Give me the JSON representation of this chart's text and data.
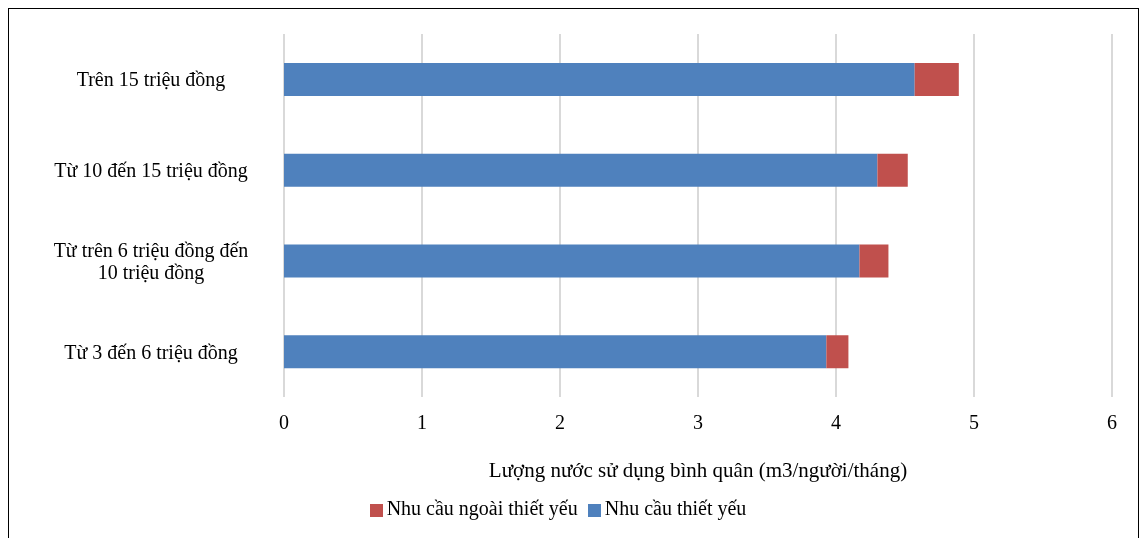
{
  "chart_data": {
    "type": "bar",
    "orientation": "horizontal",
    "stacked": true,
    "xlabel": "Lượng nước sử dụng bình quân (m3/người/tháng)",
    "categories": [
      "Trên 15 triệu đồng",
      "Từ 10 đến 15 triệu đồng",
      "Từ trên 6 triệu đồng đến 10 triệu đồng",
      "Từ 3 đến 6 triệu đồng"
    ],
    "series": [
      {
        "name": "Nhu cầu thiết yếu",
        "color": "#4f81bd",
        "values": [
          4.57,
          4.3,
          4.17,
          3.93
        ]
      },
      {
        "name": "Nhu cầu ngoài thiết yếu",
        "color": "#c0504d",
        "values": [
          0.32,
          0.22,
          0.21,
          0.16
        ]
      }
    ],
    "xlim": [
      0,
      6
    ],
    "xticks": [
      0,
      1,
      2,
      3,
      4,
      5,
      6
    ],
    "grid": "x",
    "legend": "bottom"
  }
}
